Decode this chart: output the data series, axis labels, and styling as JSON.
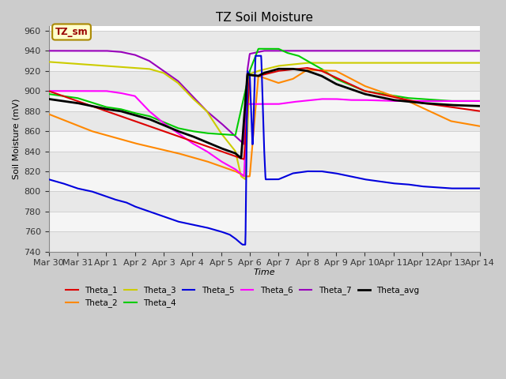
{
  "title": "TZ Soil Moisture",
  "xlabel": "Time",
  "ylabel": "Soil Moisture (mV)",
  "ylim": [
    740,
    965
  ],
  "yticks": [
    740,
    760,
    780,
    800,
    820,
    840,
    860,
    880,
    900,
    920,
    940,
    960
  ],
  "label_box": "TZ_sm",
  "series": {
    "Theta_1": {
      "color": "#dd0000",
      "lw": 1.5
    },
    "Theta_2": {
      "color": "#ff8800",
      "lw": 1.5
    },
    "Theta_3": {
      "color": "#cccc00",
      "lw": 1.5
    },
    "Theta_4": {
      "color": "#00cc00",
      "lw": 1.5
    },
    "Theta_5": {
      "color": "#0000dd",
      "lw": 1.5
    },
    "Theta_6": {
      "color": "#ff00ff",
      "lw": 1.5
    },
    "Theta_7": {
      "color": "#9900bb",
      "lw": 1.5
    },
    "Theta_avg": {
      "color": "#000000",
      "lw": 2.0
    }
  },
  "date_labels": [
    "Mar 30",
    "Mar 31",
    "Apr 1",
    "Apr 2",
    "Apr 3",
    "Apr 4",
    "Apr 5",
    "Apr 6",
    "Apr 7",
    "Apr 8",
    "Apr 9",
    "Apr 10",
    "Apr 11",
    "Apr 12",
    "Apr 13",
    "Apr 14"
  ]
}
